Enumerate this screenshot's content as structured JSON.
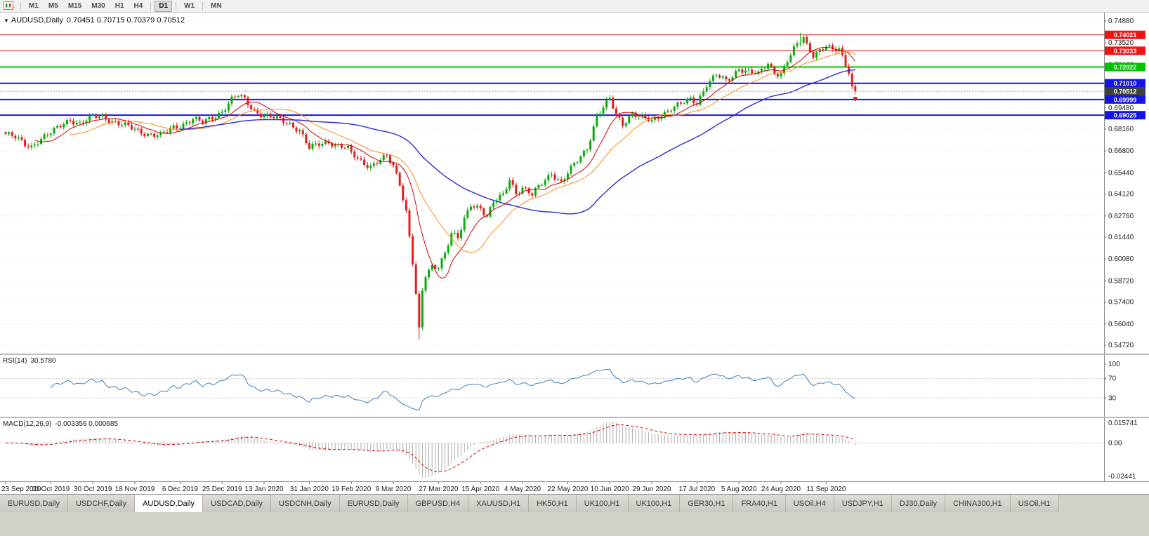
{
  "toolbar": {
    "timeframes": [
      "M1",
      "M5",
      "M15",
      "M30",
      "H1",
      "H4",
      "D1",
      "W1",
      "MN"
    ],
    "active_timeframe": "D1"
  },
  "chart": {
    "caret": "▼",
    "title": "AUDUSD,Daily",
    "ohlc": "0.70451 0.70715 0.70379 0.70512",
    "axis_labels": [
      {
        "value": 0.7488,
        "label": "0.74880"
      },
      {
        "value": 0.7352,
        "label": "0.73520"
      },
      {
        "value": 0.7216,
        "label": "0.72160"
      },
      {
        "value": 0.7082,
        "label": ""
      },
      {
        "value": 0.6948,
        "label": "0.69480"
      },
      {
        "value": 0.6816,
        "label": "0.68160"
      },
      {
        "value": 0.668,
        "label": "0.66800"
      },
      {
        "value": 0.6544,
        "label": "0.65440"
      },
      {
        "value": 0.6412,
        "label": "0.64120"
      },
      {
        "value": 0.6276,
        "label": "0.62760"
      },
      {
        "value": 0.6144,
        "label": "0.61440"
      },
      {
        "value": 0.6008,
        "label": "0.60080"
      },
      {
        "value": 0.5872,
        "label": "0.58720"
      },
      {
        "value": 0.574,
        "label": "0.57400"
      },
      {
        "value": 0.5604,
        "label": "0.56040"
      },
      {
        "value": 0.5472,
        "label": "0.54720"
      }
    ],
    "price_lines": [
      {
        "value": 0.74021,
        "label": "0.74021",
        "color": "#f01414",
        "width": 1
      },
      {
        "value": 0.73033,
        "label": "0.73033",
        "color": "#f01414",
        "width": 1
      },
      {
        "value": 0.72022,
        "label": "0.72022",
        "color": "#00c400",
        "width": 2
      },
      {
        "value": 0.7101,
        "label": "0.71010",
        "color": "#1414e6",
        "width": 2
      },
      {
        "value": 0.69999,
        "label": "0.69999",
        "color": "#1414e6",
        "width": 2
      },
      {
        "value": 0.69025,
        "label": "0.69025",
        "color": "#1414e6",
        "width": 2
      }
    ],
    "current_price": {
      "value": 0.70512,
      "label": "0.70512",
      "line_color": "#a0a0a0",
      "tag_color": "#404040"
    }
  },
  "chart_data": {
    "type": "candlestick",
    "symbol": "AUDUSD",
    "timeframe": "Daily",
    "num_candles": 264,
    "candle_spacing": 4.6,
    "candle_width": 3,
    "left_pad": 8,
    "price_range": [
      0.5472,
      0.7488
    ],
    "up_color": "#0caa0c",
    "down_color": "#e51c1c",
    "anchors": [
      [
        0,
        0.6785
      ],
      [
        3,
        0.676
      ],
      [
        6,
        0.6722
      ],
      [
        8,
        0.671
      ],
      [
        10,
        0.6745
      ],
      [
        14,
        0.6788
      ],
      [
        18,
        0.6855
      ],
      [
        20,
        0.688
      ],
      [
        23,
        0.6845
      ],
      [
        27,
        0.689
      ],
      [
        30,
        0.6902
      ],
      [
        33,
        0.6865
      ],
      [
        36,
        0.684
      ],
      [
        40,
        0.6815
      ],
      [
        44,
        0.6788
      ],
      [
        48,
        0.6772
      ],
      [
        52,
        0.6828
      ],
      [
        54,
        0.684
      ],
      [
        58,
        0.6878
      ],
      [
        61,
        0.6852
      ],
      [
        64,
        0.689
      ],
      [
        67,
        0.6928
      ],
      [
        70,
        0.6998
      ],
      [
        72,
        0.7022
      ],
      [
        74,
        0.7
      ],
      [
        77,
        0.6932
      ],
      [
        80,
        0.69
      ],
      [
        84,
        0.6878
      ],
      [
        88,
        0.6852
      ],
      [
        91,
        0.681
      ],
      [
        94,
        0.6692
      ],
      [
        97,
        0.6722
      ],
      [
        100,
        0.674
      ],
      [
        103,
        0.6715
      ],
      [
        106,
        0.6688
      ],
      [
        107,
        0.6662
      ],
      [
        110,
        0.6618
      ],
      [
        113,
        0.6588
      ],
      [
        116,
        0.6622
      ],
      [
        118,
        0.6642
      ],
      [
        120,
        0.6582
      ],
      [
        122,
        0.648
      ],
      [
        124,
        0.631
      ],
      [
        126,
        0.599
      ],
      [
        127,
        0.579
      ],
      [
        128,
        0.556
      ],
      [
        129,
        0.5802
      ],
      [
        130,
        0.5898
      ],
      [
        132,
        0.5958
      ],
      [
        134,
        0.5968
      ],
      [
        136,
        0.6052
      ],
      [
        138,
        0.6168
      ],
      [
        140,
        0.6132
      ],
      [
        142,
        0.6248
      ],
      [
        144,
        0.6348
      ],
      [
        147,
        0.6332
      ],
      [
        149,
        0.6272
      ],
      [
        151,
        0.6358
      ],
      [
        154,
        0.6402
      ],
      [
        156,
        0.6508
      ],
      [
        158,
        0.6422
      ],
      [
        160,
        0.6452
      ],
      [
        163,
        0.6402
      ],
      [
        166,
        0.6478
      ],
      [
        169,
        0.6548
      ],
      [
        172,
        0.6482
      ],
      [
        174,
        0.6538
      ],
      [
        177,
        0.6618
      ],
      [
        180,
        0.6702
      ],
      [
        183,
        0.6898
      ],
      [
        185,
        0.6948
      ],
      [
        187,
        0.6998
      ],
      [
        189,
        0.6902
      ],
      [
        191,
        0.6852
      ],
      [
        194,
        0.6918
      ],
      [
        197,
        0.6882
      ],
      [
        200,
        0.6862
      ],
      [
        203,
        0.6908
      ],
      [
        206,
        0.6948
      ],
      [
        209,
        0.6968
      ],
      [
        212,
        0.6998
      ],
      [
        214,
        0.6982
      ],
      [
        217,
        0.7098
      ],
      [
        220,
        0.7148
      ],
      [
        223,
        0.7112
      ],
      [
        225,
        0.7148
      ],
      [
        227,
        0.7198
      ],
      [
        230,
        0.7172
      ],
      [
        233,
        0.7152
      ],
      [
        236,
        0.7228
      ],
      [
        238,
        0.7172
      ],
      [
        240,
        0.7162
      ],
      [
        242,
        0.7238
      ],
      [
        244,
        0.7308
      ],
      [
        246,
        0.7362
      ],
      [
        247,
        0.7388
      ],
      [
        248,
        0.7342
      ],
      [
        250,
        0.7282
      ],
      [
        252,
        0.7308
      ],
      [
        254,
        0.7328
      ],
      [
        256,
        0.7302
      ],
      [
        258,
        0.7312
      ],
      [
        260,
        0.7222
      ],
      [
        261,
        0.7182
      ],
      [
        262,
        0.7082
      ],
      [
        263,
        0.7051
      ]
    ],
    "wick_overrides": [
      {
        "index": 128,
        "low": 0.5507
      },
      {
        "index": 246,
        "high": 0.7414
      }
    ],
    "moving_averages": [
      {
        "period": 10,
        "color": "#d40000",
        "width": 1
      },
      {
        "period": 21,
        "color": "#ff8c1a",
        "width": 1
      },
      {
        "period": 55,
        "color": "#2b2bd4",
        "width": 1.4
      }
    ],
    "x_labels": [
      {
        "index": 0,
        "label": "23 Sep 2019"
      },
      {
        "index": 14,
        "label": "11 Oct 2019"
      },
      {
        "index": 27,
        "label": "30 Oct 2019"
      },
      {
        "index": 40,
        "label": "18 Nov 2019"
      },
      {
        "index": 54,
        "label": "6 Dec 2019"
      },
      {
        "index": 67,
        "label": "25 Dec 2019"
      },
      {
        "index": 80,
        "label": "13 Jan 2020"
      },
      {
        "index": 94,
        "label": "31 Jan 2020"
      },
      {
        "index": 107,
        "label": "19 Feb 2020"
      },
      {
        "index": 120,
        "label": "9 Mar 2020"
      },
      {
        "index": 134,
        "label": "27 Mar 2020"
      },
      {
        "index": 147,
        "label": "15 Apr 2020"
      },
      {
        "index": 160,
        "label": "4 May 2020"
      },
      {
        "index": 174,
        "label": "22 May 2020"
      },
      {
        "index": 187,
        "label": "10 Jun 2020"
      },
      {
        "index": 200,
        "label": "29 Jun 2020"
      },
      {
        "index": 214,
        "label": "17 Jul 2020"
      },
      {
        "index": 227,
        "label": "5 Aug 2020"
      },
      {
        "index": 240,
        "label": "24 Aug 2020"
      },
      {
        "index": 254,
        "label": "11 Sep 2020"
      }
    ]
  },
  "rsi": {
    "label": "RSI(14)",
    "value": "30.5780",
    "levels": [
      100,
      70,
      30
    ],
    "color": "#3f7fc1"
  },
  "macd": {
    "label": "MACD(12,26,9)",
    "values": "-0.003356 0.000685",
    "axis": [
      "0.015741",
      "0.00",
      "-0.02441"
    ],
    "histogram_color": "#ababab",
    "signal_color": "#e00000"
  },
  "tabs": {
    "active_index": 2,
    "items": [
      "EURUSD,Daily",
      "USDCHF,Daily",
      "AUDUSD,Daily",
      "USDCAD,Daily",
      "USDCNH,Daily",
      "EURUSD,Daily",
      "GBPUSD,H4",
      "XAUUSD,H1",
      "HK50,H1",
      "UK100,H1",
      "UK100,H1",
      "GER30,H1",
      "FRA40,H1",
      "USOil,H4",
      "USDJPY,H1",
      "DJ30,Daily",
      "CHINA300,H1",
      "USOil,H1"
    ]
  }
}
